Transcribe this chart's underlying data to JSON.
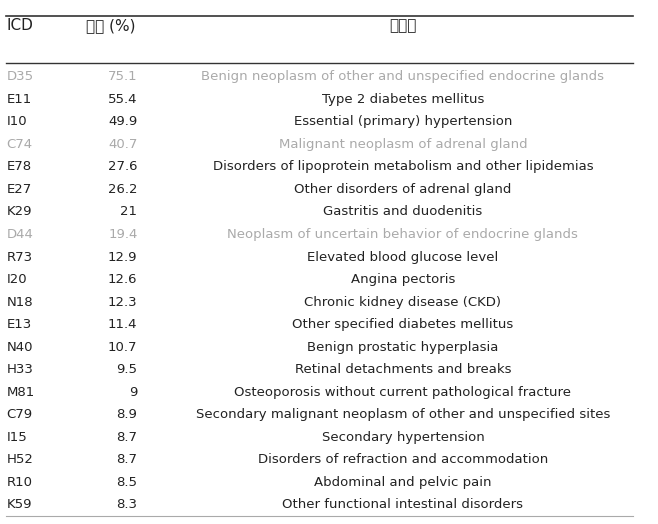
{
  "rows": [
    {
      "icd": "D35",
      "ratio": "75.1",
      "diagnosis": "Benign neoplasm of other and unspecified endocrine glands",
      "gray": true
    },
    {
      "icd": "E11",
      "ratio": "55.4",
      "diagnosis": "Type 2 diabetes mellitus",
      "gray": false
    },
    {
      "icd": "I10",
      "ratio": "49.9",
      "diagnosis": "Essential (primary) hypertension",
      "gray": false
    },
    {
      "icd": "C74",
      "ratio": "40.7",
      "diagnosis": "Malignant neoplasm of adrenal gland",
      "gray": true
    },
    {
      "icd": "E78",
      "ratio": "27.6",
      "diagnosis": "Disorders of lipoprotein metabolism and other lipidemias",
      "gray": false
    },
    {
      "icd": "E27",
      "ratio": "26.2",
      "diagnosis": "Other disorders of adrenal gland",
      "gray": false
    },
    {
      "icd": "K29",
      "ratio": "21",
      "diagnosis": "Gastritis and duodenitis",
      "gray": false
    },
    {
      "icd": "D44",
      "ratio": "19.4",
      "diagnosis": "Neoplasm of uncertain behavior of endocrine glands",
      "gray": true
    },
    {
      "icd": "R73",
      "ratio": "12.9",
      "diagnosis": "Elevated blood glucose level",
      "gray": false
    },
    {
      "icd": "I20",
      "ratio": "12.6",
      "diagnosis": "Angina pectoris",
      "gray": false
    },
    {
      "icd": "N18",
      "ratio": "12.3",
      "diagnosis": "Chronic kidney disease (CKD)",
      "gray": false
    },
    {
      "icd": "E13",
      "ratio": "11.4",
      "diagnosis": "Other specified diabetes mellitus",
      "gray": false
    },
    {
      "icd": "N40",
      "ratio": "10.7",
      "diagnosis": "Benign prostatic hyperplasia",
      "gray": false
    },
    {
      "icd": "H33",
      "ratio": "9.5",
      "diagnosis": "Retinal detachments and breaks",
      "gray": false
    },
    {
      "icd": "M81",
      "ratio": "9",
      "diagnosis": "Osteoporosis without current pathological fracture",
      "gray": false
    },
    {
      "icd": "C79",
      "ratio": "8.9",
      "diagnosis": "Secondary malignant neoplasm of other and unspecified sites",
      "gray": false
    },
    {
      "icd": "I15",
      "ratio": "8.7",
      "diagnosis": "Secondary hypertension",
      "gray": false
    },
    {
      "icd": "H52",
      "ratio": "8.7",
      "diagnosis": "Disorders of refraction and accommodation",
      "gray": false
    },
    {
      "icd": "R10",
      "ratio": "8.5",
      "diagnosis": "Abdominal and pelvic pain",
      "gray": false
    },
    {
      "icd": "K59",
      "ratio": "8.3",
      "diagnosis": "Other functional intestinal disorders",
      "gray": false
    }
  ],
  "col_headers": [
    "ICD",
    "비율 (%)",
    "진단명"
  ],
  "normal_color": "#222222",
  "gray_color": "#aaaaaa",
  "header_color": "#222222",
  "bg_color": "#ffffff",
  "header_top_line_color": "#333333",
  "header_bottom_line_color": "#333333",
  "table_bottom_line_color": "#aaaaaa",
  "font_size": 9.5,
  "header_font_size": 11
}
